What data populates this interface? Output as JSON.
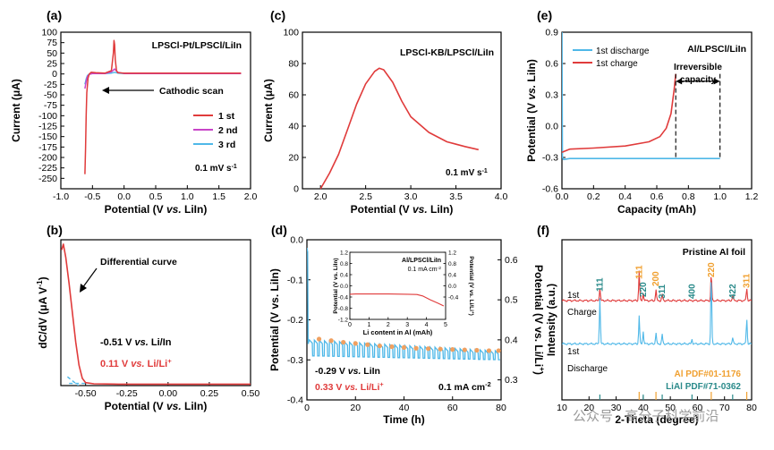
{
  "watermark": "公众号 · 高分子科学前沿",
  "chart_data": [
    {
      "panel": "(a)",
      "type": "line",
      "title": "LPSCl-Pt/LPSCl/LiIn",
      "xlabel_pre": "Potential (V ",
      "xlabel_it": "vs.",
      "xlabel_post": " LiIn)",
      "ylabel": "Current (μA)",
      "xlim": [
        -1.0,
        2.0
      ],
      "ylim": [
        -275,
        100
      ],
      "xticks": [
        -1.0,
        -0.5,
        0.0,
        0.5,
        1.0,
        1.5,
        2.0
      ],
      "yticks": [
        100,
        75,
        50,
        25,
        0,
        -25,
        -50,
        -75,
        -100,
        -125,
        -150,
        -175,
        -200,
        -225,
        -250
      ],
      "annotation": "Cathodic scan",
      "rate_label": "0.1 mV s",
      "rate_sup": "-1",
      "series": [
        {
          "name": "1 st",
          "color": "#e03b3b",
          "x": [
            -0.62,
            -0.61,
            -0.6,
            -0.59,
            -0.57,
            -0.55,
            -0.52,
            -0.45,
            -0.3,
            -0.2,
            -0.17,
            -0.16,
            -0.15,
            -0.14,
            -0.12,
            -0.1,
            0.0,
            0.5,
            1.0,
            1.5,
            1.85
          ],
          "y": [
            -240,
            -180,
            -100,
            -45,
            -10,
            0,
            4,
            3,
            2,
            8,
            50,
            80,
            70,
            35,
            8,
            3,
            2,
            2,
            2,
            2,
            2
          ]
        },
        {
          "name": "2 nd",
          "color": "#c845c8",
          "x": [
            -0.62,
            -0.6,
            -0.58,
            -0.55,
            -0.5,
            -0.3,
            -0.2,
            -0.15,
            -0.1,
            0.0,
            0.5,
            1.0,
            1.5,
            1.85
          ],
          "y": [
            -35,
            -18,
            -6,
            -1,
            1,
            1,
            5,
            12,
            4,
            1,
            1,
            1,
            1,
            1
          ]
        },
        {
          "name": "3 rd",
          "color": "#4fb8e8",
          "x": [
            -0.62,
            -0.6,
            -0.58,
            -0.55,
            -0.5,
            -0.3,
            -0.2,
            -0.15,
            -0.1,
            0.0,
            0.5,
            1.0,
            1.5,
            1.85
          ],
          "y": [
            -25,
            -12,
            -4,
            0,
            1,
            1,
            2,
            4,
            2,
            1,
            1,
            1,
            1,
            1
          ]
        }
      ]
    },
    {
      "panel": "(b)",
      "type": "line",
      "ylabel_pre": "dC/dV (μA V",
      "ylabel_sup": "-1",
      "ylabel_post": ")",
      "xlabel_pre": "Potential (V ",
      "xlabel_it": "vs.",
      "xlabel_post": " LiIn)",
      "xlim": [
        -0.65,
        0.5
      ],
      "xticks": [
        -0.5,
        -0.25,
        0.0,
        0.25,
        0.5
      ],
      "annotation": "Differential curve",
      "label1_pre": "-0.51 V ",
      "label1_it": "vs.",
      "label1_post": " Li/In",
      "label2_pre": "0.11 V ",
      "label2_it": "vs.",
      "label2_post": " Li/Li",
      "label2_sup": "+",
      "series": [
        {
          "name": "dC/dV",
          "color": "#e03b3b",
          "x": [
            -0.645,
            -0.635,
            -0.62,
            -0.6,
            -0.58,
            -0.56,
            -0.54,
            -0.52,
            -0.5,
            -0.45,
            -0.3,
            0.0,
            0.25,
            0.5
          ],
          "y": [
            0.93,
            0.97,
            0.88,
            0.7,
            0.5,
            0.3,
            0.14,
            0.05,
            0.02,
            0.012,
            0.01,
            0.01,
            0.01,
            0.01
          ]
        }
      ],
      "tangent_lines": [
        {
          "x": [
            -0.61,
            -0.5
          ],
          "y": [
            0.06,
            -0.04
          ]
        },
        {
          "x": [
            -0.6,
            -0.5
          ],
          "y": [
            0.015,
            0.015
          ]
        }
      ]
    },
    {
      "panel": "(c)",
      "type": "line",
      "title": "LPSCl-KB/LPSCl/LiIn",
      "xlabel_pre": "Potential (V ",
      "xlabel_it": "vs.",
      "xlabel_post": " LiIn)",
      "ylabel": "Current (μA)",
      "xlim": [
        1.8,
        4.0
      ],
      "ylim": [
        0,
        100
      ],
      "xticks": [
        2.0,
        2.5,
        3.0,
        3.5,
        4.0
      ],
      "yticks": [
        0,
        20,
        40,
        60,
        80,
        100
      ],
      "rate_label": "0.1 mV s",
      "rate_sup": "-1",
      "series": [
        {
          "name": "current",
          "color": "#e03b3b",
          "x": [
            2.0,
            2.1,
            2.2,
            2.3,
            2.4,
            2.5,
            2.6,
            2.65,
            2.7,
            2.8,
            2.9,
            3.0,
            3.2,
            3.4,
            3.6,
            3.75
          ],
          "y": [
            0,
            10,
            22,
            38,
            54,
            67,
            75,
            77,
            76,
            68,
            56,
            46,
            36,
            30,
            27,
            25
          ]
        }
      ]
    },
    {
      "panel": "(d)",
      "type": "line",
      "xlabel": "Time (h)",
      "ylabel": "Potential (V vs. LiIn)",
      "y2label": "Potential (V vs. Li/Li",
      "y2label_sup": "+",
      "y2label_end": ")",
      "xlim": [
        0,
        80
      ],
      "ylim": [
        -0.4,
        0.0
      ],
      "xticks": [
        0,
        20,
        40,
        60,
        80
      ],
      "yticks": [
        0.0,
        -0.1,
        -0.2,
        -0.3,
        -0.4
      ],
      "y2ticks": [
        0.6,
        0.5,
        0.4,
        0.3
      ],
      "label1_pre": "-0.29 V ",
      "label1_it": "vs.",
      "label1_post": " LiIn",
      "label2_pre": "0.33 V ",
      "label2_it": "vs.",
      "label2_post": " Li/Li",
      "label2_sup": "+",
      "rate_label": "0.1 mA cm",
      "rate_sup": "-2",
      "cycle_markers": {
        "x": [
          5,
          10,
          15,
          20,
          25,
          30,
          35,
          40,
          45,
          50,
          55,
          60,
          65,
          70,
          75,
          79
        ],
        "y": [
          -0.248,
          -0.252,
          -0.256,
          -0.259,
          -0.262,
          -0.265,
          -0.267,
          -0.269,
          -0.271,
          -0.272,
          -0.273,
          -0.274,
          -0.275,
          -0.276,
          -0.277,
          -0.277
        ]
      },
      "inset": {
        "title": "Al/LPSCl/LiIn",
        "rate_label": "0.1 mA cm",
        "rate_sup": "-2",
        "xlabel": "Li content in Al (mAh)",
        "ylabel": "Potential (V vs. LiIn)",
        "y2label": "Potential (V vs. Li/Li",
        "y2label_sup": "+",
        "y2label_end": ")",
        "xlim": [
          0,
          5
        ],
        "ylim": [
          -1.2,
          1.2
        ],
        "xticks": [
          0,
          1,
          2,
          3,
          4,
          5
        ],
        "yticks": [
          1.2,
          0.8,
          0.4,
          0.0,
          -0.4,
          -0.8,
          -1.2
        ],
        "y2ticks": [
          1.2,
          0.8,
          0.4,
          0.0,
          -0.4
        ],
        "series": [
          {
            "name": "inset",
            "color": "#e03b3b",
            "x": [
              0.0,
              0.3,
              1.0,
              2.0,
              3.0,
              3.5,
              3.8,
              4.2,
              4.6,
              4.9
            ],
            "y": [
              -0.3,
              -0.29,
              -0.29,
              -0.29,
              -0.3,
              -0.31,
              -0.36,
              -0.5,
              -0.62,
              -0.72
            ]
          }
        ]
      }
    },
    {
      "panel": "(e)",
      "type": "line",
      "title": "Al/LPSCl/LiIn",
      "xlabel": "Capacity (mAh)",
      "ylabel_pre": "Potential (V ",
      "ylabel_it": "vs.",
      "ylabel_post": " LiIn)",
      "xlim": [
        0,
        1.2
      ],
      "ylim": [
        -0.6,
        0.9
      ],
      "xticks": [
        0.0,
        0.2,
        0.4,
        0.6,
        0.8,
        1.0,
        1.2
      ],
      "yticks": [
        0.9,
        0.6,
        0.3,
        0.0,
        -0.3,
        -0.6
      ],
      "annotation": "Irreversible capacity",
      "series": [
        {
          "name": "1st discharge",
          "color": "#4fb8e8",
          "x": [
            0.0,
            0.003,
            0.01,
            0.05,
            0.2,
            0.5,
            0.8,
            1.0
          ],
          "y": [
            0.9,
            -0.3,
            -0.32,
            -0.31,
            -0.31,
            -0.31,
            -0.31,
            -0.31
          ]
        },
        {
          "name": "1st charge",
          "color": "#e03b3b",
          "x": [
            0.0,
            0.05,
            0.2,
            0.4,
            0.55,
            0.62,
            0.66,
            0.69,
            0.71,
            0.72
          ],
          "y": [
            -0.25,
            -0.22,
            -0.21,
            -0.19,
            -0.15,
            -0.1,
            -0.02,
            0.12,
            0.35,
            0.5
          ]
        }
      ]
    },
    {
      "panel": "(f)",
      "type": "line",
      "title": "Pristine Al foil",
      "xlabel": "2-Theta (degree)",
      "ylabel": "Intensity (a.u.)",
      "xlim": [
        10,
        80
      ],
      "xticks": [
        10,
        20,
        30,
        40,
        50,
        60,
        70,
        80
      ],
      "series_labels": [
        "1st",
        "Charge",
        "1st",
        "Discharge"
      ],
      "peak_labels_al": [
        "111",
        "200",
        "220",
        "311"
      ],
      "peak_positions_al": [
        38.5,
        44.7,
        65.1,
        78.2
      ],
      "peak_labels_lial": [
        "111",
        "220",
        "311",
        "400",
        "422"
      ],
      "peak_positions_lial": [
        24.0,
        40.0,
        47.0,
        58.0,
        73.0
      ],
      "ref_labels": [
        "Al PDF#01-1176",
        "LiAl PDF#71-0362"
      ],
      "ref_colors": [
        "#f0a030",
        "#2a8a8a"
      ]
    }
  ]
}
